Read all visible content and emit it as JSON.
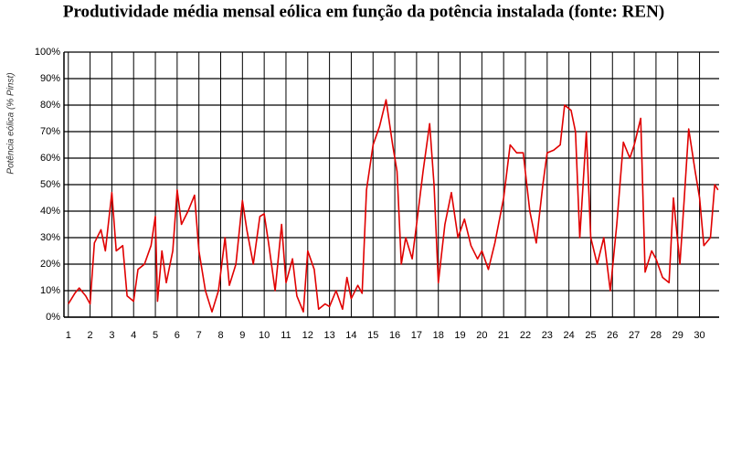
{
  "chart_data": {
    "type": "line",
    "title": "Produtividade média mensal eólica em função da potência instalada (fonte: REN)",
    "y_label": "Potência eólica (% Pinst)",
    "x": [
      1,
      1.3,
      1.5,
      1.8,
      2,
      2.2,
      2.5,
      2.7,
      3,
      3.2,
      3.5,
      3.7,
      4,
      4.2,
      4.5,
      4.8,
      5,
      5.1,
      5.3,
      5.5,
      5.8,
      6,
      6.2,
      6.5,
      6.8,
      7,
      7.3,
      7.6,
      7.9,
      8.2,
      8.4,
      8.7,
      9,
      9.2,
      9.5,
      9.8,
      10,
      10.2,
      10.5,
      10.8,
      11,
      11.3,
      11.5,
      11.8,
      12,
      12.3,
      12.5,
      12.8,
      13,
      13.3,
      13.6,
      13.8,
      14,
      14.3,
      14.5,
      14.7,
      15,
      15.3,
      15.6,
      15.9,
      16.1,
      16.3,
      16.5,
      16.8,
      17,
      17.3,
      17.6,
      17.8,
      18,
      18.3,
      18.6,
      18.9,
      19.2,
      19.5,
      19.8,
      20,
      20.3,
      20.6,
      21,
      21.3,
      21.6,
      21.9,
      22.2,
      22.5,
      22.8,
      23,
      23.3,
      23.6,
      23.8,
      24.1,
      24.3,
      24.5,
      24.8,
      25,
      25.3,
      25.6,
      25.9,
      26.2,
      26.5,
      26.8,
      27,
      27.3,
      27.5,
      27.8,
      28,
      28.3,
      28.6,
      28.8,
      29.1,
      29.3,
      29.5,
      29.8,
      30,
      30.2,
      30.5,
      30.7,
      30.85
    ],
    "series": [
      {
        "color": "#e00000",
        "values": [
          5,
          9,
          11,
          8,
          5,
          28,
          33,
          25,
          47,
          25,
          27,
          8,
          6,
          18,
          20,
          27,
          38,
          6,
          25,
          13,
          25,
          48,
          35,
          40,
          46,
          25,
          10,
          2,
          10,
          30,
          12,
          20,
          44,
          33,
          20,
          38,
          39,
          28,
          10,
          35,
          13,
          22,
          8,
          2,
          25,
          18,
          3,
          5,
          4,
          10,
          3,
          15,
          7,
          12,
          9,
          48,
          65,
          72,
          82,
          65,
          55,
          20,
          30,
          22,
          35,
          55,
          73,
          50,
          13,
          35,
          47,
          30,
          37,
          27,
          22,
          25,
          18,
          28,
          45,
          65,
          62,
          62,
          40,
          28,
          50,
          62,
          63,
          65,
          80,
          78,
          70,
          30,
          70,
          30,
          20,
          30,
          10,
          35,
          66,
          60,
          65,
          75,
          17,
          25,
          22,
          15,
          13,
          45,
          20,
          45,
          71,
          55,
          45,
          27,
          30,
          50,
          48
        ]
      }
    ],
    "xlim": [
      0.8,
      30.9
    ],
    "xticks": [
      1,
      2,
      3,
      4,
      5,
      6,
      7,
      8,
      9,
      10,
      11,
      12,
      13,
      14,
      15,
      16,
      17,
      18,
      19,
      20,
      21,
      22,
      23,
      24,
      25,
      26,
      27,
      28,
      29,
      30
    ],
    "ylim": [
      0,
      100
    ],
    "yticks": [
      {
        "value": 0,
        "label": "0%"
      },
      {
        "value": 10,
        "label": "10%"
      },
      {
        "value": 20,
        "label": "20%"
      },
      {
        "value": 30,
        "label": "30%"
      },
      {
        "value": 40,
        "label": "40%"
      },
      {
        "value": 50,
        "label": "50%"
      },
      {
        "value": 60,
        "label": "60%"
      },
      {
        "value": 70,
        "label": "70%"
      },
      {
        "value": 80,
        "label": "80%"
      },
      {
        "value": 90,
        "label": "90%"
      },
      {
        "value": 100,
        "label": "100%"
      }
    ],
    "grid": true
  }
}
